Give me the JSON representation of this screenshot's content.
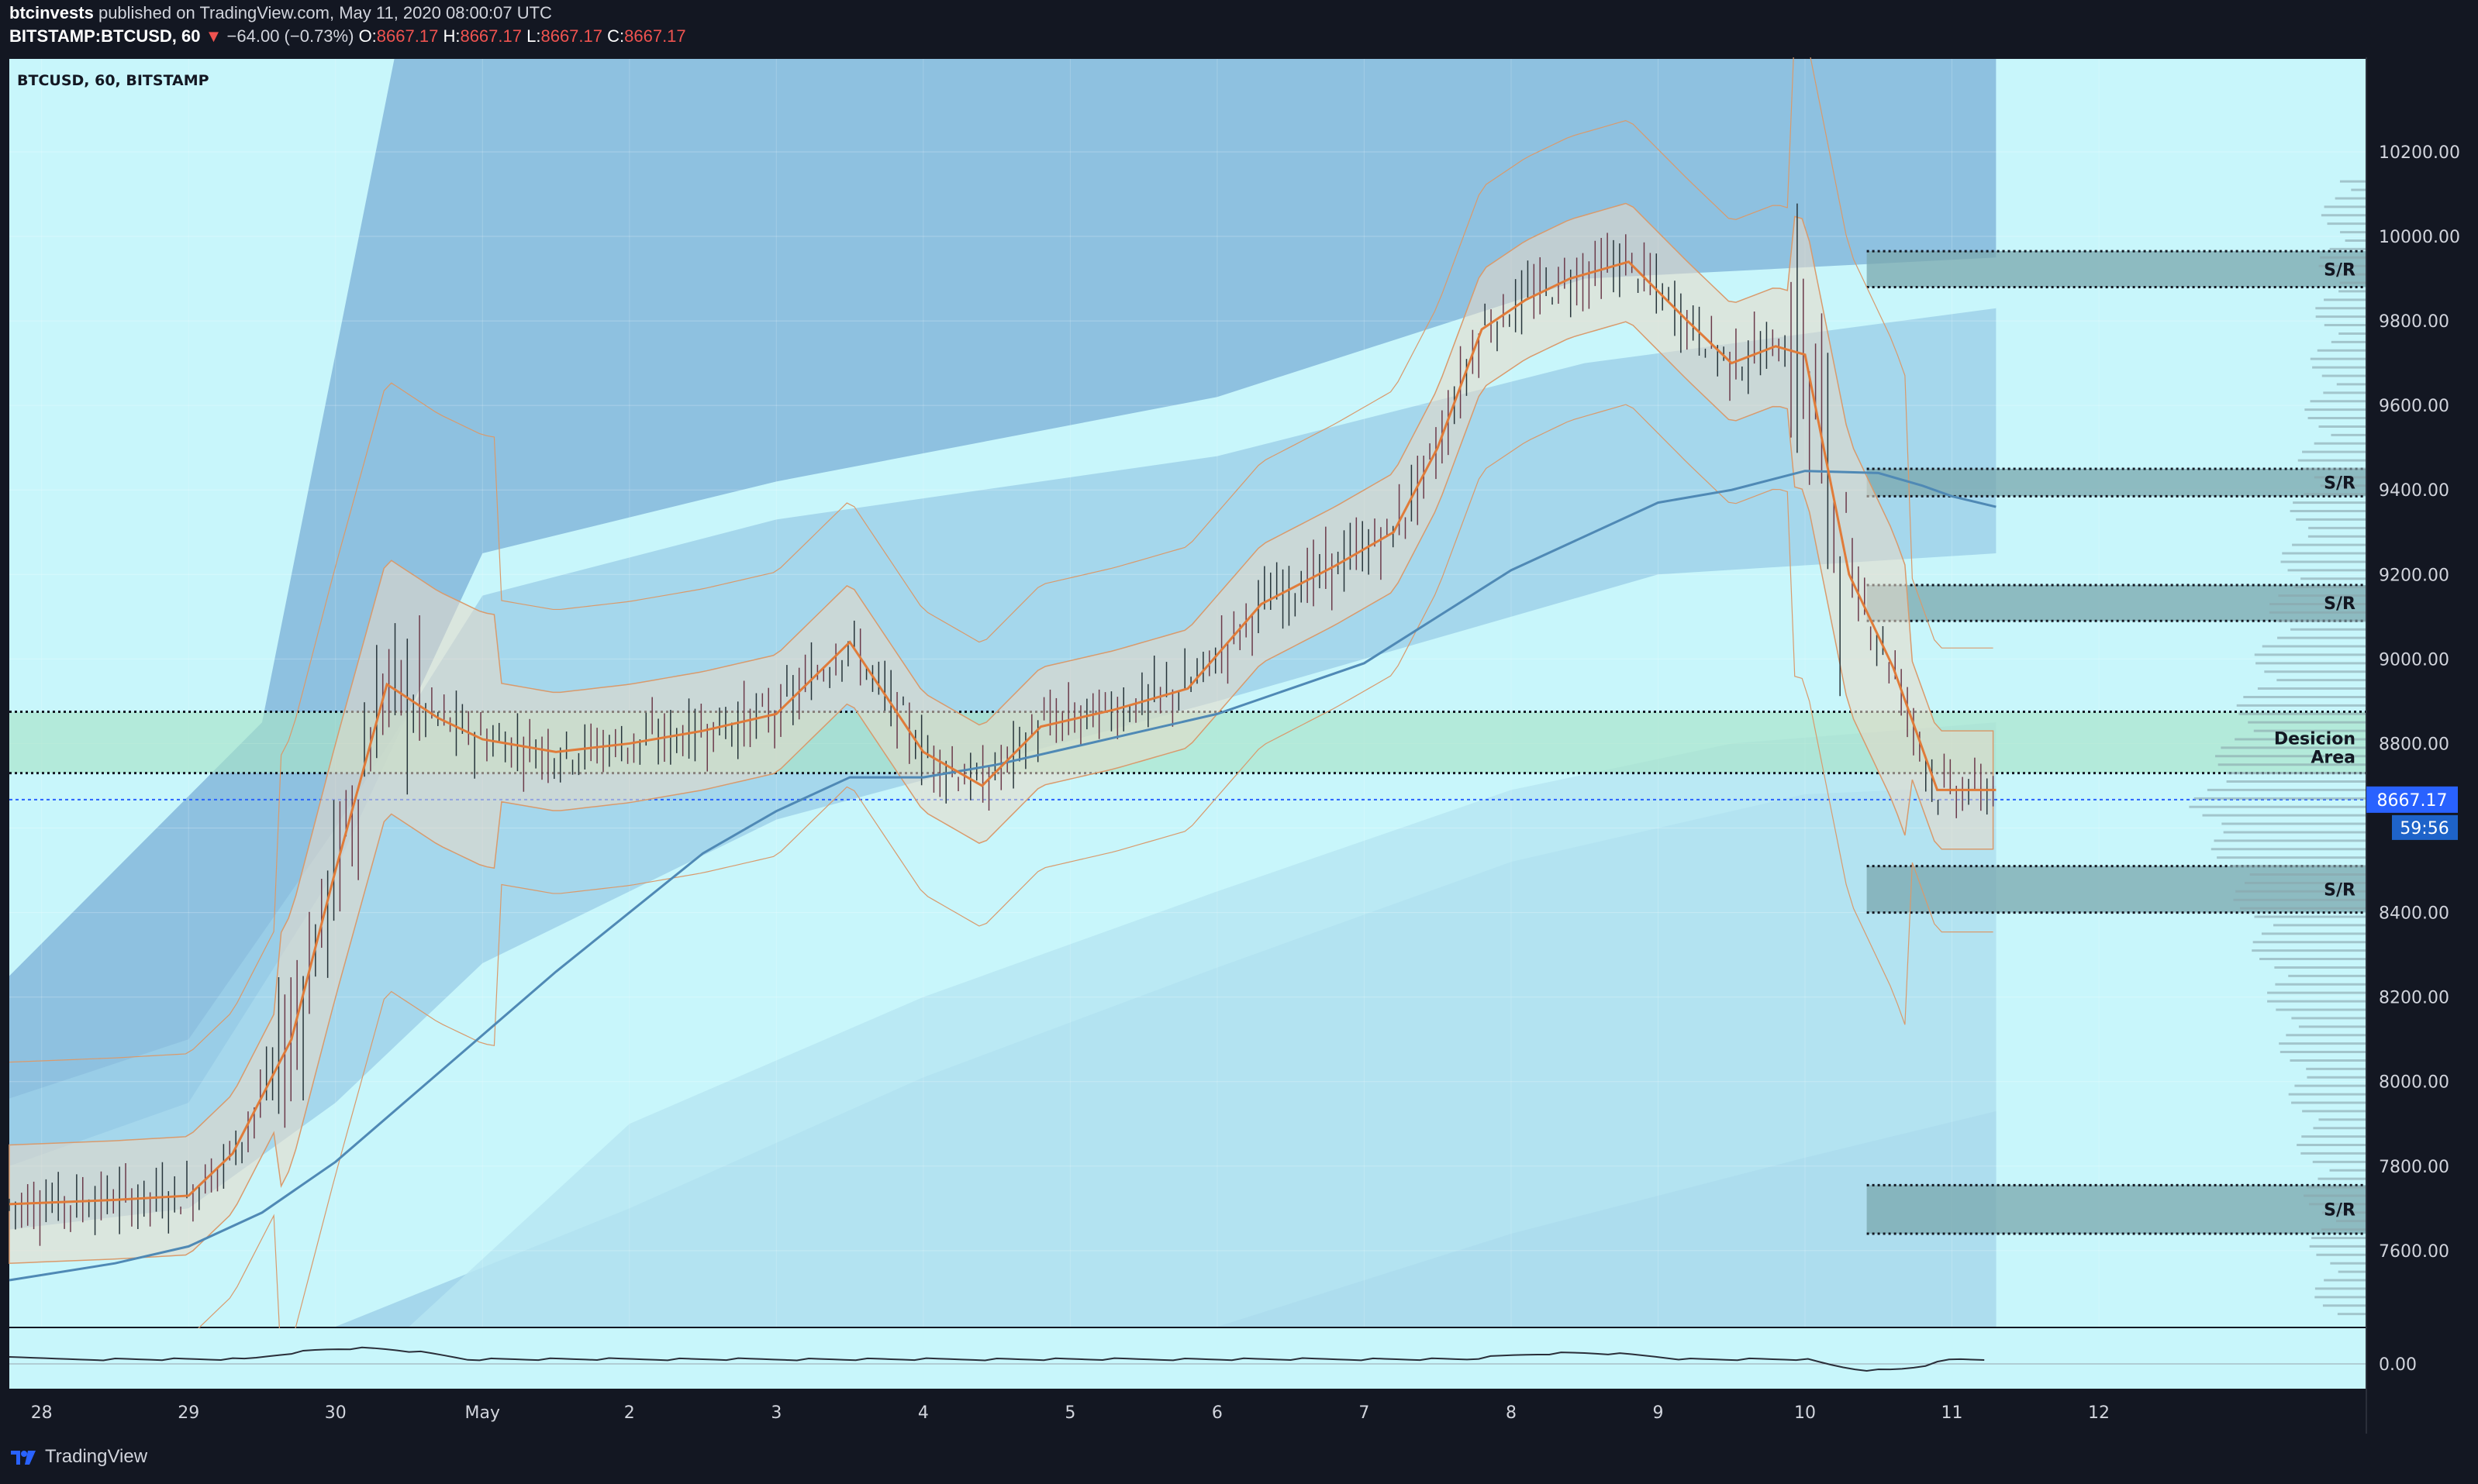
{
  "header": {
    "publisher": "btcinvests",
    "published_text": "published on TradingView.com, May 11, 2020 08:00:07 UTC",
    "symbol": "BITSTAMP:BTCUSD, 60",
    "change": "−64.00 (−0.73%)",
    "open_label": "O:",
    "open": "8667.17",
    "high_label": "H:",
    "high": "8667.17",
    "low_label": "L:",
    "low": "8667.17",
    "close_label": "C:",
    "close": "8667.17"
  },
  "legend_title": "BTCUSD, 60, BITSTAMP",
  "price_marker": {
    "price": "8667.17",
    "countdown": "59:56"
  },
  "footer": {
    "brand": "TradingView"
  },
  "colors": {
    "background": "#c8f6fb",
    "band_outer": "#7fb4da",
    "band_mid": "#9cd0e8",
    "band_inner": "#b6e6f2",
    "ma_slow": "#4f89b5",
    "ma_fast": "#e07b39",
    "envelope": "#d99a6c",
    "decision_zone": "#a8e3c8",
    "sr_zone": "#7aa7ad",
    "price_line": "#2962ff",
    "down_arrow": "#ef5350"
  },
  "icons": [
    "tradingview-logo-icon",
    "down-arrow-icon"
  ],
  "annotations": {
    "sr_label": "S/R",
    "decision_label_1": "Desicion",
    "decision_label_2": "Area"
  },
  "chart_data": {
    "type": "bar",
    "title": "",
    "xlabel": "",
    "ylabel": "",
    "ylim": [
      7420,
      10420
    ],
    "y_ticks": [
      7600,
      7800,
      8000,
      8200,
      8400,
      8600,
      8800,
      9000,
      9200,
      9400,
      9600,
      9800,
      10000,
      10200
    ],
    "y_tick_labels": [
      "7600.00",
      "7800.00",
      "8000.00",
      "8200.00",
      "8400.00",
      "",
      "8800.00",
      "9000.00",
      "9200.00",
      "9400.00",
      "9600.00",
      "9800.00",
      "10000.00",
      "10200.00"
    ],
    "x_ticks": [
      {
        "label": "28",
        "day": 0
      },
      {
        "label": "29",
        "day": 1
      },
      {
        "label": "30",
        "day": 2
      },
      {
        "label": "May",
        "day": 3
      },
      {
        "label": "2",
        "day": 4
      },
      {
        "label": "3",
        "day": 5
      },
      {
        "label": "4",
        "day": 6
      },
      {
        "label": "5",
        "day": 7
      },
      {
        "label": "6",
        "day": 8
      },
      {
        "label": "7",
        "day": 9
      },
      {
        "label": "8",
        "day": 10
      },
      {
        "label": "9",
        "day": 11
      },
      {
        "label": "10",
        "day": 12
      },
      {
        "label": "11",
        "day": 13
      },
      {
        "label": "12",
        "day": 14
      }
    ],
    "xlim_days": [
      -0.22,
      15.82
    ],
    "last_price": 8667.17,
    "sr_zones": [
      {
        "label": "S/R",
        "low": 9880,
        "high": 9965
      },
      {
        "label": "S/R",
        "low": 9385,
        "high": 9450
      },
      {
        "label": "S/R",
        "low": 9090,
        "high": 9175
      },
      {
        "label": "S/R",
        "low": 8400,
        "high": 8510
      },
      {
        "label": "S/R",
        "low": 7640,
        "high": 7755
      }
    ],
    "decision_area": {
      "low": 8730,
      "high": 8875
    },
    "ma_fast": {
      "days": [
        -0.22,
        0.5,
        1.0,
        1.3,
        1.7,
        2.0,
        2.35,
        2.7,
        3.0,
        3.5,
        4.0,
        4.5,
        5.0,
        5.5,
        6.0,
        6.4,
        6.8,
        7.3,
        7.8,
        8.3,
        8.8,
        9.2,
        9.5,
        9.8,
        10.1,
        10.4,
        10.8,
        11.2,
        11.5,
        11.8,
        12.0,
        12.3,
        12.6,
        12.9,
        13.3
      ],
      "values": [
        7710,
        7720,
        7730,
        7830,
        8100,
        8500,
        8940,
        8860,
        8810,
        8780,
        8800,
        8830,
        8870,
        9040,
        8780,
        8700,
        8840,
        8880,
        8930,
        9130,
        9220,
        9300,
        9500,
        9780,
        9850,
        9900,
        9940,
        9800,
        9700,
        9740,
        9720,
        9200,
        8980,
        8690,
        8690
      ]
    },
    "ma_slow": {
      "days": [
        -0.22,
        0.5,
        1.0,
        1.5,
        2.0,
        2.5,
        3.0,
        3.5,
        4.0,
        4.5,
        5.0,
        5.5,
        6.0,
        6.5,
        7.0,
        7.5,
        8.0,
        8.5,
        9.0,
        9.5,
        10.0,
        10.5,
        11.0,
        11.5,
        12.0,
        12.5,
        12.8,
        13.0,
        13.3
      ],
      "values": [
        7530,
        7570,
        7610,
        7690,
        7810,
        7960,
        8110,
        8260,
        8400,
        8540,
        8640,
        8720,
        8720,
        8750,
        8790,
        8830,
        8870,
        8930,
        8990,
        9100,
        9210,
        9290,
        9370,
        9400,
        9445,
        9440,
        9410,
        9385,
        9360
      ]
    },
    "series_candles_day_range": [
      -0.22,
      13.3
    ]
  }
}
